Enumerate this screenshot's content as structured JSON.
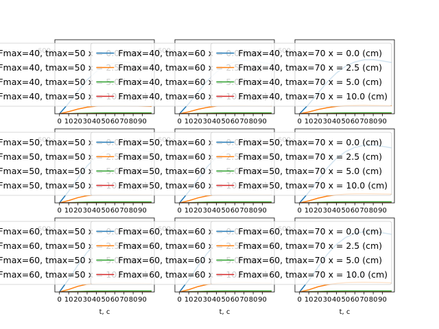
{
  "chart_data": {
    "type": "line",
    "layout": "3x3 grid of subplots",
    "colors": [
      "#1f77b4",
      "#ff7f0e",
      "#2ca02c",
      "#d62728"
    ],
    "grid": false,
    "legend_placement": "upper-right, overlapping neighbouring subplots",
    "xlabel": "t, c",
    "x_ticks": [
      0,
      10,
      20,
      30,
      40,
      50,
      60,
      70,
      80,
      90
    ],
    "x_tick_labels": [
      "0",
      "10",
      "20",
      "30",
      "40",
      "50",
      "60",
      "70",
      "80",
      "90"
    ],
    "xlim": [
      -5,
      103
    ],
    "y_visible_tick": 600,
    "x_samples": [
      0,
      10,
      20,
      30,
      40,
      50,
      60,
      70,
      80,
      90,
      100
    ],
    "subplots": [
      {
        "fmax": 40,
        "tmax": 50,
        "ylim": [
          0,
          700
        ],
        "legend_prefix": "Fmax=40, tmax=50 x = ",
        "series": [
          {
            "name": "Fmax=40, tmax=50 x = 0.0 (cm)",
            "values": [
              0,
              100,
              215,
              320,
              400,
              455,
              480,
              490,
              480,
              465,
              450
            ]
          },
          {
            "name": "Fmax=40, tmax=50 x = 2.5 (cm)",
            "values": [
              0,
              20,
              45,
              62,
              72,
              76,
              77,
              76,
              74,
              72,
              70
            ]
          },
          {
            "name": "Fmax=40, tmax=50 x = 5.0 (cm)",
            "values": [
              0,
              2,
              4,
              6,
              7,
              8,
              8,
              8,
              8,
              8,
              8
            ]
          },
          {
            "name": "Fmax=40, tmax=50 x = 10.0 (cm)",
            "values": [
              0,
              0,
              0,
              0,
              0,
              0,
              0,
              0,
              0,
              0,
              0
            ]
          }
        ]
      },
      {
        "fmax": 40,
        "tmax": 60,
        "ylim": [
          0,
          700
        ],
        "legend_prefix": "Fmax=40, tmax=60 x = ",
        "series": [
          {
            "name": "Fmax=40, tmax=60 x = 0.0 (cm)",
            "values": [
              0,
              95,
              205,
              310,
              395,
              455,
              490,
              505,
              500,
              485,
              470
            ]
          },
          {
            "name": "Fmax=40, tmax=60 x = 2.5 (cm)",
            "values": [
              0,
              18,
              42,
              60,
              72,
              77,
              79,
              79,
              77,
              75,
              73
            ]
          },
          {
            "name": "Fmax=40, tmax=60 x = 5.0 (cm)",
            "values": [
              0,
              2,
              4,
              6,
              7,
              8,
              8,
              8,
              8,
              8,
              8
            ]
          },
          {
            "name": "Fmax=40, tmax=60 x = 10.0 (cm)",
            "values": [
              0,
              0,
              0,
              0,
              0,
              0,
              0,
              0,
              0,
              0,
              0
            ]
          }
        ]
      },
      {
        "fmax": 40,
        "tmax": 70,
        "ylim": [
          0,
          700
        ],
        "legend_prefix": "Fmax=40, tmax=70 x = ",
        "series": [
          {
            "name": "Fmax=40, tmax=70 x = 0.0 (cm)",
            "values": [
              0,
              90,
              195,
              300,
              385,
              450,
              490,
              510,
              512,
              500,
              485
            ]
          },
          {
            "name": "Fmax=40, tmax=70 x = 2.5 (cm)",
            "values": [
              0,
              17,
              40,
              58,
              70,
              77,
              80,
              81,
              80,
              78,
              76
            ]
          },
          {
            "name": "Fmax=40, tmax=70 x = 5.0 (cm)",
            "values": [
              0,
              2,
              4,
              6,
              7,
              8,
              8,
              9,
              9,
              9,
              9
            ]
          },
          {
            "name": "Fmax=40, tmax=70 x = 10.0 (cm)",
            "values": [
              0,
              0,
              0,
              0,
              0,
              0,
              0,
              0,
              0,
              0,
              0
            ]
          }
        ]
      },
      {
        "fmax": 50,
        "tmax": 50,
        "ylim": [
          0,
          700
        ],
        "legend_prefix": "Fmax=50, tmax=50 x = ",
        "series": [
          {
            "name": "Fmax=50, tmax=50 x = 0.0 (cm)",
            "values": [
              0,
              110,
              235,
              350,
              435,
              490,
              515,
              520,
              510,
              495,
              480
            ]
          },
          {
            "name": "Fmax=50, tmax=50 x = 2.5 (cm)",
            "values": [
              0,
              22,
              50,
              68,
              78,
              82,
              83,
              82,
              80,
              78,
              76
            ]
          },
          {
            "name": "Fmax=50, tmax=50 x = 5.0 (cm)",
            "values": [
              0,
              2,
              5,
              7,
              8,
              9,
              9,
              9,
              9,
              9,
              9
            ]
          },
          {
            "name": "Fmax=50, tmax=50 x = 10.0 (cm)",
            "values": [
              0,
              0,
              0,
              0,
              0,
              0,
              0,
              0,
              0,
              0,
              0
            ]
          }
        ]
      },
      {
        "fmax": 50,
        "tmax": 60,
        "ylim": [
          0,
          700
        ],
        "legend_prefix": "Fmax=50, tmax=60 x = ",
        "series": [
          {
            "name": "Fmax=50, tmax=60 x = 0.0 (cm)",
            "values": [
              0,
              105,
              225,
              340,
              430,
              490,
              525,
              535,
              530,
              515,
              500
            ]
          },
          {
            "name": "Fmax=50, tmax=60 x = 2.5 (cm)",
            "values": [
              0,
              20,
              47,
              66,
              78,
              83,
              85,
              85,
              83,
              81,
              79
            ]
          },
          {
            "name": "Fmax=50, tmax=60 x = 5.0 (cm)",
            "values": [
              0,
              2,
              5,
              7,
              8,
              9,
              9,
              9,
              9,
              9,
              9
            ]
          },
          {
            "name": "Fmax=50, tmax=60 x = 10.0 (cm)",
            "values": [
              0,
              0,
              0,
              0,
              0,
              0,
              0,
              0,
              0,
              0,
              0
            ]
          }
        ]
      },
      {
        "fmax": 50,
        "tmax": 70,
        "ylim": [
          0,
          700
        ],
        "legend_prefix": "Fmax=50, tmax=70 x = ",
        "series": [
          {
            "name": "Fmax=50, tmax=70 x = 0.0 (cm)",
            "values": [
              0,
              100,
              215,
              330,
              420,
              485,
              525,
              545,
              545,
              535,
              520
            ]
          },
          {
            "name": "Fmax=50, tmax=70 x = 2.5 (cm)",
            "values": [
              0,
              19,
              45,
              64,
              76,
              83,
              86,
              87,
              86,
              84,
              82
            ]
          },
          {
            "name": "Fmax=50, tmax=70 x = 5.0 (cm)",
            "values": [
              0,
              2,
              5,
              7,
              8,
              9,
              9,
              10,
              10,
              10,
              10
            ]
          },
          {
            "name": "Fmax=50, tmax=70 x = 10.0 (cm)",
            "values": [
              0,
              0,
              0,
              0,
              0,
              0,
              0,
              0,
              0,
              0,
              0
            ]
          }
        ]
      },
      {
        "fmax": 60,
        "tmax": 50,
        "ylim": [
          0,
          700
        ],
        "legend_prefix": "Fmax=60, tmax=50 x = ",
        "series": [
          {
            "name": "Fmax=60, tmax=50 x = 0.0 (cm)",
            "values": [
              0,
              120,
              255,
              375,
              465,
              520,
              545,
              550,
              540,
              525,
              510
            ]
          },
          {
            "name": "Fmax=60, tmax=50 x = 2.5 (cm)",
            "values": [
              0,
              24,
              54,
              73,
              83,
              87,
              88,
              87,
              85,
              83,
              81
            ]
          },
          {
            "name": "Fmax=60, tmax=50 x = 5.0 (cm)",
            "values": [
              0,
              3,
              5,
              7,
              9,
              9,
              10,
              10,
              10,
              10,
              10
            ]
          },
          {
            "name": "Fmax=60, tmax=50 x = 10.0 (cm)",
            "values": [
              0,
              0,
              0,
              0,
              0,
              0,
              0,
              0,
              0,
              0,
              0
            ]
          }
        ]
      },
      {
        "fmax": 60,
        "tmax": 60,
        "ylim": [
          0,
          700
        ],
        "legend_prefix": "Fmax=60, tmax=60 x = ",
        "series": [
          {
            "name": "Fmax=60, tmax=60 x = 0.0 (cm)",
            "values": [
              0,
              115,
              245,
              365,
              460,
              520,
              555,
              565,
              560,
              545,
              530
            ]
          },
          {
            "name": "Fmax=60, tmax=60 x = 2.5 (cm)",
            "values": [
              0,
              22,
              51,
              71,
              83,
              88,
              90,
              90,
              88,
              86,
              84
            ]
          },
          {
            "name": "Fmax=60, tmax=60 x = 5.0 (cm)",
            "values": [
              0,
              3,
              5,
              7,
              9,
              10,
              10,
              10,
              10,
              10,
              10
            ]
          },
          {
            "name": "Fmax=60, tmax=60 x = 10.0 (cm)",
            "values": [
              0,
              0,
              0,
              0,
              0,
              0,
              0,
              0,
              0,
              0,
              0
            ]
          }
        ]
      },
      {
        "fmax": 60,
        "tmax": 70,
        "ylim": [
          0,
          700
        ],
        "legend_prefix": "Fmax=60, tmax=70 x = ",
        "series": [
          {
            "name": "Fmax=60, tmax=70 x = 0.0 (cm)",
            "values": [
              0,
              110,
              235,
              355,
              450,
              515,
              555,
              570,
              570,
              560,
              545
            ]
          },
          {
            "name": "Fmax=60, tmax=70 x = 2.5 (cm)",
            "values": [
              0,
              21,
              49,
              69,
              81,
              88,
              91,
              92,
              91,
              89,
              87
            ]
          },
          {
            "name": "Fmax=60, tmax=70 x = 5.0 (cm)",
            "values": [
              0,
              3,
              5,
              7,
              9,
              10,
              10,
              10,
              10,
              10,
              10
            ]
          },
          {
            "name": "Fmax=60, tmax=70 x = 10.0 (cm)",
            "values": [
              0,
              0,
              0,
              0,
              0,
              0,
              0,
              0,
              0,
              0,
              0
            ]
          }
        ]
      }
    ]
  }
}
